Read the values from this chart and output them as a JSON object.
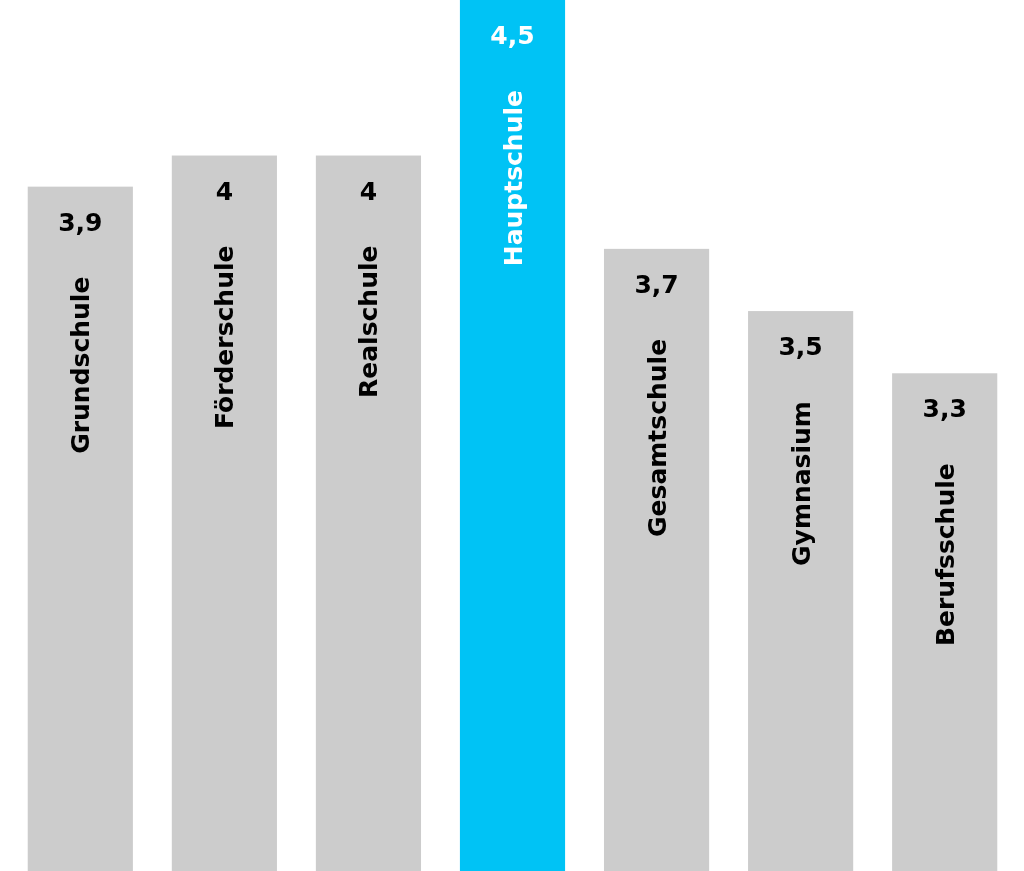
{
  "chart_data": {
    "type": "bar",
    "categories": [
      "Grundschule",
      "Förderschule",
      "Realschule",
      "Hauptschule",
      "Gesamtschule",
      "Gymnasium",
      "Berufsschule"
    ],
    "values": [
      3.9,
      4,
      4,
      4.5,
      3.7,
      3.5,
      3.3
    ],
    "value_labels": [
      "3,9",
      "4",
      "4",
      "4,5",
      "3,7",
      "3,5",
      "3,3"
    ],
    "colors": [
      "#cccccc",
      "#cccccc",
      "#cccccc",
      "#00c3f5",
      "#cccccc",
      "#cccccc",
      "#cccccc"
    ],
    "ylim": [
      1.7,
      4.5
    ]
  }
}
